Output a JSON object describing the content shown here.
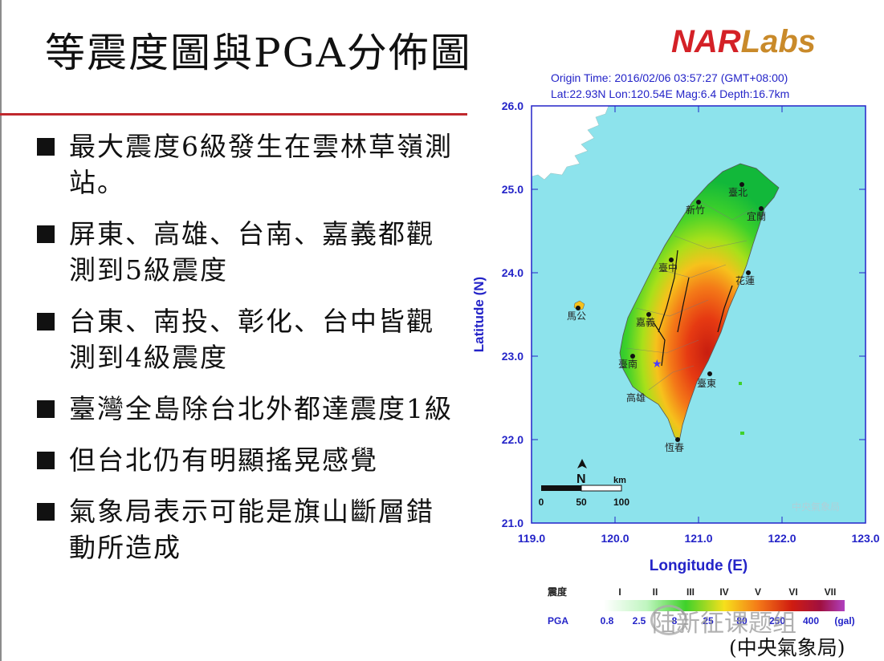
{
  "slide": {
    "title": "等震度圖與PGA分佈圖",
    "logo": {
      "part1": "NAR",
      "part2": "Labs"
    },
    "bullets": [
      "最大震度6級發生在雲林草嶺測站。",
      "屏東、高雄、台南、嘉義都觀測到5級震度",
      "台東、南投、彰化、台中皆觀測到4級震度",
      "臺灣全島除台北外都達震度1級",
      "但台北仍有明顯搖晃感覺",
      "氣象局表示可能是旗山斷層錯動所造成"
    ],
    "source": "(中央氣象局)",
    "watermark": "陆新征课题组"
  },
  "map": {
    "header_line1": "Origin Time: 2016/02/06 03:57:27 (GMT+08:00)",
    "header_line2": "Lat:22.93N Lon:120.54E Mag:6.4 Depth:16.7km",
    "x_axis_label": "Longitude (E)",
    "y_axis_label": "Latitude (N)",
    "x_ticks": [
      "119.0",
      "120.0",
      "121.0",
      "122.0",
      "123.0"
    ],
    "y_ticks": [
      "26.0",
      "25.0",
      "24.0",
      "23.0",
      "22.0",
      "21.0"
    ],
    "scale_label": "km",
    "scale_ticks": [
      "0",
      "50",
      "100"
    ],
    "north_label": "N",
    "agency_mark": "中央氣象局",
    "cities": [
      "臺北",
      "新竹",
      "宜蘭",
      "臺中",
      "花蓮",
      "馬公",
      "嘉義",
      "臺南",
      "高雄",
      "臺東",
      "恆春"
    ],
    "legend": {
      "intensity_label": "震度",
      "intensity_levels": [
        "I",
        "II",
        "III",
        "IV",
        "V",
        "VI",
        "VII"
      ],
      "pga_label": "PGA",
      "pga_values": [
        "0.8",
        "2.5",
        "8",
        "25",
        "80",
        "250",
        "400"
      ],
      "pga_unit": "(gal)"
    },
    "colors": {
      "sea": "#8de3ec",
      "frame": "#2424c8",
      "axis_text": "#2424c8"
    }
  }
}
